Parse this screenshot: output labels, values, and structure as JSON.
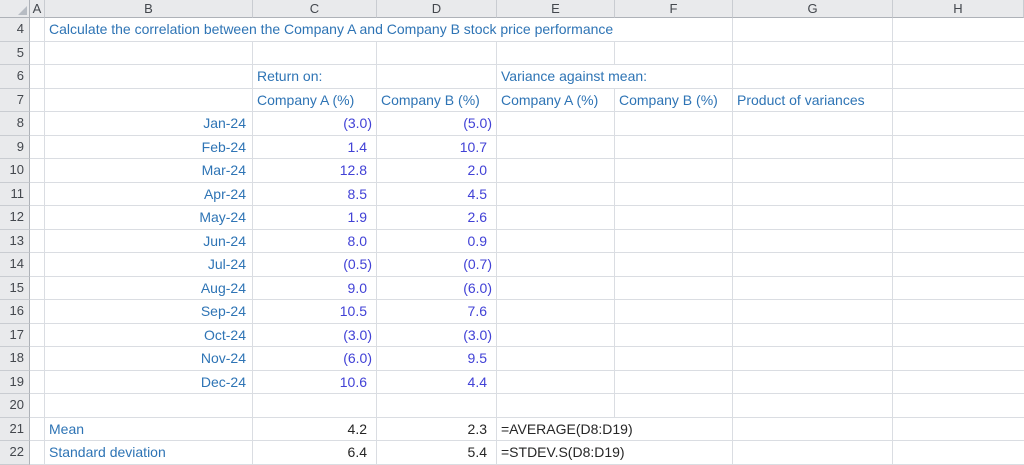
{
  "app": {
    "name": "spreadsheet-grid"
  },
  "palette": {
    "label-blue": "#2e74b5",
    "input-blue": "#4141d6",
    "result-black": "#262626",
    "gridline": "#dadde2",
    "header-bg": "#e9eaec",
    "header-border": "#c9ccd1",
    "header-strong-border": "#aeb2b8",
    "header-text": "#43474d"
  },
  "sheet": {
    "col_headers": [
      "A",
      "B",
      "C",
      "D",
      "E",
      "F",
      "G",
      "H"
    ],
    "row_headers": [
      "4",
      "5",
      "6",
      "7",
      "8",
      "9",
      "10",
      "11",
      "12",
      "13",
      "14",
      "15",
      "16",
      "17",
      "18",
      "19",
      "20",
      "21",
      "22"
    ],
    "rows": [
      {
        "r": "4",
        "cells": [
          {
            "col": "B",
            "span": 5,
            "style": "label",
            "text": "Calculate the correlation between the Company A and Company B stock price performance"
          }
        ]
      },
      {
        "r": "5",
        "cells": []
      },
      {
        "r": "6",
        "cells": [
          {
            "col": "C",
            "span": 1,
            "style": "label",
            "text": "Return on:"
          },
          {
            "col": "E",
            "span": 2,
            "style": "label",
            "text": "Variance against mean:"
          }
        ]
      },
      {
        "r": "7",
        "cells": [
          {
            "col": "C",
            "span": 1,
            "style": "label",
            "text": "Company A (%)"
          },
          {
            "col": "D",
            "span": 1,
            "style": "label",
            "text": "Company B (%)"
          },
          {
            "col": "E",
            "span": 1,
            "style": "label",
            "text": "Company A (%)"
          },
          {
            "col": "F",
            "span": 1,
            "style": "label",
            "text": "Company B (%)"
          },
          {
            "col": "G",
            "span": 1,
            "style": "label",
            "text": "Product of variances"
          }
        ]
      },
      {
        "r": "8",
        "cells": [
          {
            "col": "B",
            "span": 1,
            "style": "month",
            "text": "Jan-24"
          },
          {
            "col": "C",
            "span": 1,
            "style": "input",
            "text": "(3.0)"
          },
          {
            "col": "D",
            "span": 1,
            "style": "input",
            "text": "(5.0)"
          }
        ]
      },
      {
        "r": "9",
        "cells": [
          {
            "col": "B",
            "span": 1,
            "style": "month",
            "text": "Feb-24"
          },
          {
            "col": "C",
            "span": 1,
            "style": "input",
            "text": "1.4"
          },
          {
            "col": "D",
            "span": 1,
            "style": "input",
            "text": "10.7"
          }
        ]
      },
      {
        "r": "10",
        "cells": [
          {
            "col": "B",
            "span": 1,
            "style": "month",
            "text": "Mar-24"
          },
          {
            "col": "C",
            "span": 1,
            "style": "input",
            "text": "12.8"
          },
          {
            "col": "D",
            "span": 1,
            "style": "input",
            "text": "2.0"
          }
        ]
      },
      {
        "r": "11",
        "cells": [
          {
            "col": "B",
            "span": 1,
            "style": "month",
            "text": "Apr-24"
          },
          {
            "col": "C",
            "span": 1,
            "style": "input",
            "text": "8.5"
          },
          {
            "col": "D",
            "span": 1,
            "style": "input",
            "text": "4.5"
          }
        ]
      },
      {
        "r": "12",
        "cells": [
          {
            "col": "B",
            "span": 1,
            "style": "month",
            "text": "May-24"
          },
          {
            "col": "C",
            "span": 1,
            "style": "input",
            "text": "1.9"
          },
          {
            "col": "D",
            "span": 1,
            "style": "input",
            "text": "2.6"
          }
        ]
      },
      {
        "r": "13",
        "cells": [
          {
            "col": "B",
            "span": 1,
            "style": "month",
            "text": "Jun-24"
          },
          {
            "col": "C",
            "span": 1,
            "style": "input",
            "text": "8.0"
          },
          {
            "col": "D",
            "span": 1,
            "style": "input",
            "text": "0.9"
          }
        ]
      },
      {
        "r": "14",
        "cells": [
          {
            "col": "B",
            "span": 1,
            "style": "month",
            "text": "Jul-24"
          },
          {
            "col": "C",
            "span": 1,
            "style": "input",
            "text": "(0.5)"
          },
          {
            "col": "D",
            "span": 1,
            "style": "input",
            "text": "(0.7)"
          }
        ]
      },
      {
        "r": "15",
        "cells": [
          {
            "col": "B",
            "span": 1,
            "style": "month",
            "text": "Aug-24"
          },
          {
            "col": "C",
            "span": 1,
            "style": "input",
            "text": "9.0"
          },
          {
            "col": "D",
            "span": 1,
            "style": "input",
            "text": "(6.0)"
          }
        ]
      },
      {
        "r": "16",
        "cells": [
          {
            "col": "B",
            "span": 1,
            "style": "month",
            "text": "Sep-24"
          },
          {
            "col": "C",
            "span": 1,
            "style": "input",
            "text": "10.5"
          },
          {
            "col": "D",
            "span": 1,
            "style": "input",
            "text": "7.6"
          }
        ]
      },
      {
        "r": "17",
        "cells": [
          {
            "col": "B",
            "span": 1,
            "style": "month",
            "text": "Oct-24"
          },
          {
            "col": "C",
            "span": 1,
            "style": "input",
            "text": "(3.0)"
          },
          {
            "col": "D",
            "span": 1,
            "style": "input",
            "text": "(3.0)"
          }
        ]
      },
      {
        "r": "18",
        "cells": [
          {
            "col": "B",
            "span": 1,
            "style": "month",
            "text": "Nov-24"
          },
          {
            "col": "C",
            "span": 1,
            "style": "input",
            "text": "(6.0)"
          },
          {
            "col": "D",
            "span": 1,
            "style": "input",
            "text": "9.5"
          }
        ]
      },
      {
        "r": "19",
        "cells": [
          {
            "col": "B",
            "span": 1,
            "style": "month",
            "text": "Dec-24"
          },
          {
            "col": "C",
            "span": 1,
            "style": "input",
            "text": "10.6"
          },
          {
            "col": "D",
            "span": 1,
            "style": "input",
            "text": "4.4"
          }
        ]
      },
      {
        "r": "20",
        "cells": []
      },
      {
        "r": "21",
        "cells": [
          {
            "col": "B",
            "span": 1,
            "style": "label",
            "text": "Mean"
          },
          {
            "col": "C",
            "span": 1,
            "style": "result",
            "text": "4.2"
          },
          {
            "col": "D",
            "span": 1,
            "style": "result",
            "text": "2.3"
          },
          {
            "col": "E",
            "span": 2,
            "style": "formula",
            "text": "=AVERAGE(D8:D19)"
          }
        ]
      },
      {
        "r": "22",
        "cells": [
          {
            "col": "B",
            "span": 1,
            "style": "label",
            "text": "Standard deviation"
          },
          {
            "col": "C",
            "span": 1,
            "style": "result",
            "text": "6.4"
          },
          {
            "col": "D",
            "span": 1,
            "style": "result",
            "text": "5.4"
          },
          {
            "col": "E",
            "span": 2,
            "style": "formula",
            "text": "=STDEV.S(D8:D19)"
          }
        ]
      }
    ]
  }
}
